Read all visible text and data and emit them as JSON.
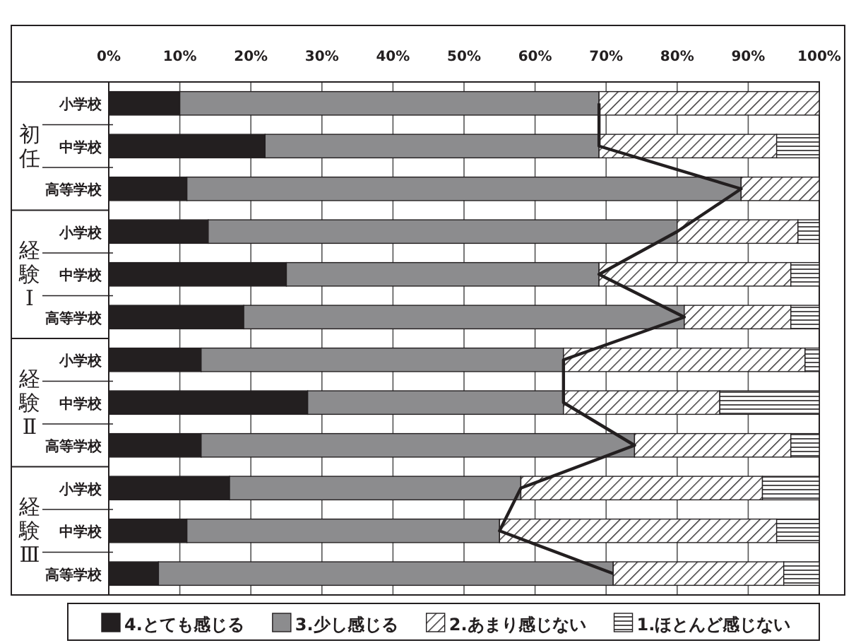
{
  "chart_data": {
    "type": "bar",
    "orientation": "horizontal",
    "stacked": true,
    "categories": [
      "小学校",
      "中学校",
      "高等学校",
      "小学校",
      "中学校",
      "高等学校",
      "小学校",
      "中学校",
      "高等学校",
      "小学校",
      "中学校",
      "高等学校"
    ],
    "annotations": [
      "初任",
      "経験Ⅰ",
      "経験Ⅱ",
      "経験Ⅲ"
    ],
    "series": [
      {
        "name": "4.とても感じる",
        "color": "#231f20",
        "values": [
          10,
          22,
          11,
          14,
          25,
          19,
          13,
          28,
          13,
          17,
          11,
          7
        ]
      },
      {
        "name": "3.少し感じる",
        "color": "#8c8c8e",
        "values": [
          59,
          47,
          78,
          66,
          44,
          62,
          51,
          36,
          61,
          41,
          44,
          64
        ]
      },
      {
        "name": "2.あまり感じない",
        "color": "#231f20",
        "values": [
          31,
          25,
          11,
          17,
          27,
          15,
          34,
          22,
          22,
          34,
          39,
          24
        ]
      },
      {
        "name": "1.ほとんど感じない",
        "color": "#231f20",
        "values": [
          0,
          6,
          0,
          3,
          4,
          4,
          2,
          14,
          4,
          8,
          6,
          5
        ]
      },
      {
        "type": "line",
        "color": "#231f20",
        "values": [
          69,
          69,
          89,
          80,
          69,
          81,
          64,
          64,
          74,
          58,
          55,
          71
        ]
      }
    ],
    "xlim": [
      0,
      100
    ],
    "xticks": [
      {
        "value": 0,
        "label": "0%"
      },
      {
        "value": 10,
        "label": "10%"
      },
      {
        "value": 20,
        "label": "20%"
      },
      {
        "value": 30,
        "label": "30%"
      },
      {
        "value": 40,
        "label": "40%"
      },
      {
        "value": 50,
        "label": "50%"
      },
      {
        "value": 60,
        "label": "60%"
      },
      {
        "value": 70,
        "label": "70%"
      },
      {
        "value": 80,
        "label": "80%"
      },
      {
        "value": 90,
        "label": "90%"
      },
      {
        "value": 100,
        "label": "100%"
      }
    ],
    "grid": "x",
    "legend": "bottom"
  }
}
